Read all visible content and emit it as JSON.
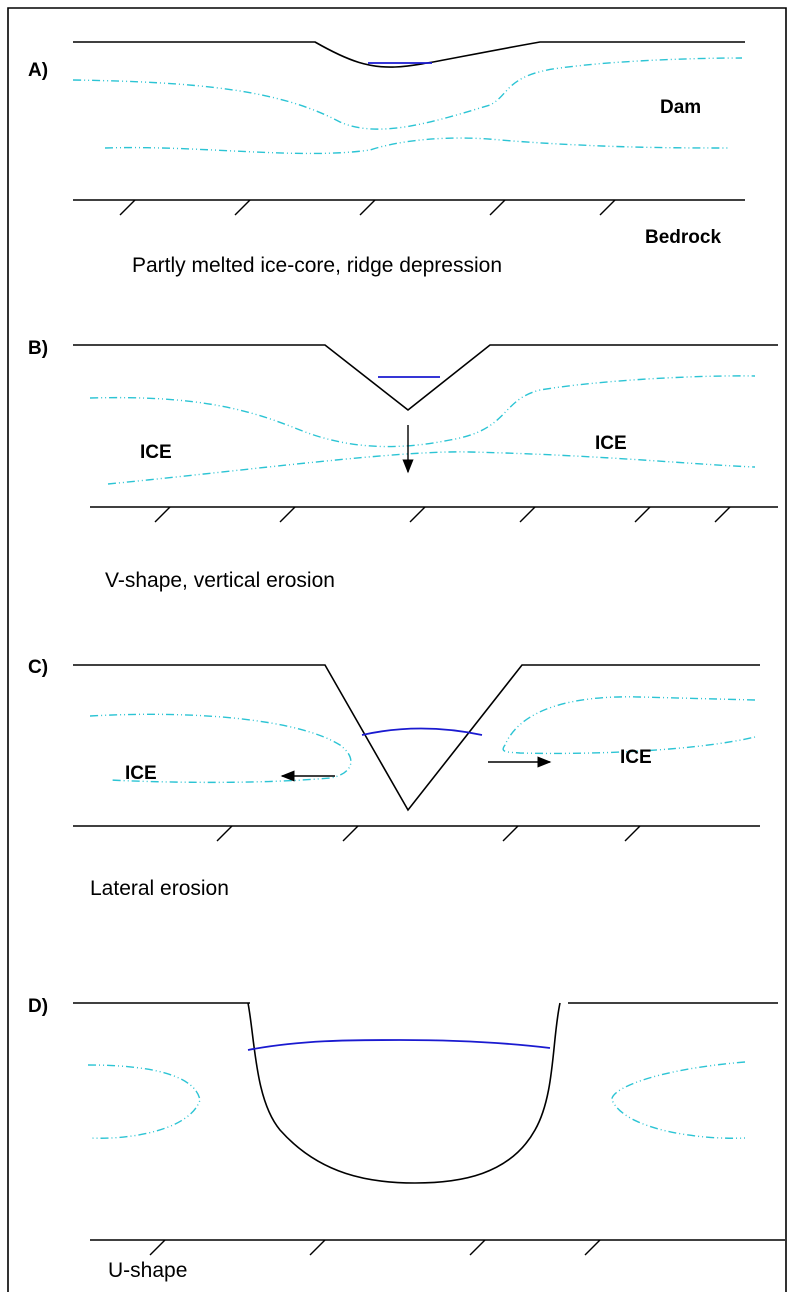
{
  "panels": [
    {
      "label": "A)",
      "caption": "Partly melted ice-core, ridge depression",
      "annotations": [
        "Dam",
        "Bedrock"
      ]
    },
    {
      "label": "B)",
      "caption": "V-shape, vertical erosion",
      "annotations": [
        "ICE",
        "ICE"
      ]
    },
    {
      "label": "C)",
      "caption": "Lateral erosion",
      "annotations": [
        "ICE",
        "ICE"
      ]
    },
    {
      "label": "D)",
      "caption": "U-shape"
    }
  ]
}
